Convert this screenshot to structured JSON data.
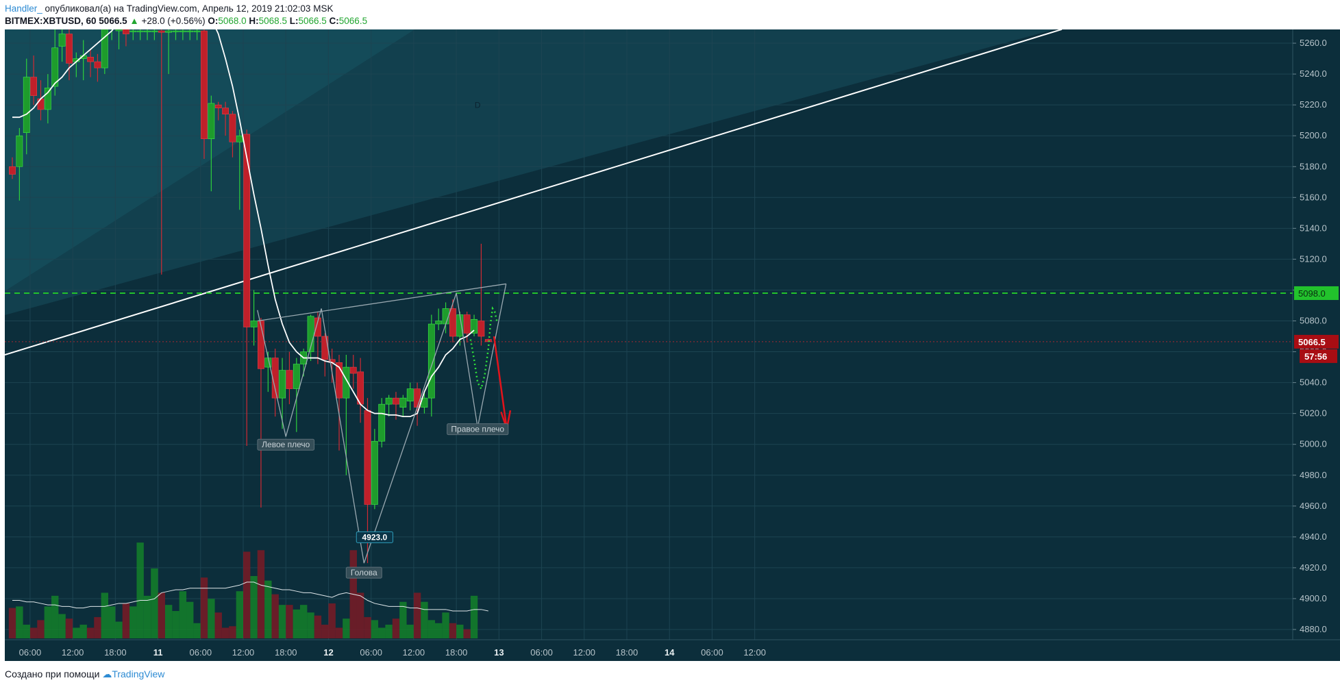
{
  "header": {
    "author": "Handler_",
    "published_text": " опубликовал(а) на TradingView.com, Апрель 12, 2019 21:02:03 MSK",
    "symbol": "BITMEX:XBTUSD, 60",
    "last_price": "5066.5",
    "change": "+28.0 (+0.56%)",
    "open_label": "O:",
    "open_value": "5068.0",
    "high_label": "H:",
    "high_value": "5068.5",
    "low_label": "L:",
    "low_value": "5066.5",
    "close_label": "C:",
    "close_value": "5066.5"
  },
  "footer": {
    "created_with": "Создано при помощи",
    "brand": "TradingView"
  },
  "colors": {
    "background": "#0c2e3b",
    "up_candle": "#1e9c2c",
    "down_candle": "#c0202a",
    "accent_green": "#22c22c",
    "price_red": "#a80d13"
  },
  "chart_data": {
    "type": "candlestick",
    "symbol": "BITMEX:XBTUSD",
    "interval": "60",
    "y_axis": {
      "ticks": [
        4880,
        4900,
        4920,
        4940,
        4960,
        4980,
        5000,
        5020,
        5040,
        5060,
        5080,
        5100,
        5120,
        5140,
        5160,
        5180,
        5200,
        5220,
        5240,
        5260
      ],
      "range": [
        4866,
        5266
      ]
    },
    "x_axis": {
      "ticks": [
        {
          "label": "06:00",
          "i": 2.5
        },
        {
          "label": "12:00",
          "i": 8.5
        },
        {
          "label": "18:00",
          "i": 14.5
        },
        {
          "label": "11",
          "i": 20.5
        },
        {
          "label": "06:00",
          "i": 26.5
        },
        {
          "label": "12:00",
          "i": 32.5
        },
        {
          "label": "18:00",
          "i": 38.5
        },
        {
          "label": "12",
          "i": 44.5
        },
        {
          "label": "06:00",
          "i": 50.5
        },
        {
          "label": "12:00",
          "i": 56.5
        },
        {
          "label": "18:00",
          "i": 62.5
        },
        {
          "label": "13",
          "i": 68.5
        },
        {
          "label": "06:00",
          "i": 74.5
        },
        {
          "label": "12:00",
          "i": 80.5
        },
        {
          "label": "18:00",
          "i": 86.5
        },
        {
          "label": "14",
          "i": 92.5
        },
        {
          "label": "06:00",
          "i": 98.5
        },
        {
          "label": "12:00",
          "i": 104.5
        }
      ]
    },
    "candles": [
      {
        "o": 5180,
        "h": 5186,
        "c": 5175,
        "l": 5172
      },
      {
        "o": 5180,
        "h": 5205,
        "c": 5200,
        "l": 5158
      },
      {
        "o": 5202,
        "h": 5250,
        "c": 5238,
        "l": 5188
      },
      {
        "o": 5238,
        "h": 5252,
        "c": 5226,
        "l": 5220
      },
      {
        "o": 5224,
        "h": 5236,
        "c": 5217,
        "l": 5210
      },
      {
        "o": 5217,
        "h": 5240,
        "c": 5231,
        "l": 5208
      },
      {
        "o": 5232,
        "h": 5270,
        "c": 5257,
        "l": 5226
      },
      {
        "o": 5258,
        "h": 5272,
        "c": 5266,
        "l": 5248
      },
      {
        "o": 5266,
        "h": 5270,
        "c": 5247,
        "l": 5236
      },
      {
        "o": 5248,
        "h": 5254,
        "c": 5250,
        "l": 5238
      },
      {
        "o": 5250,
        "h": 5262,
        "c": 5252,
        "l": 5236
      },
      {
        "o": 5251,
        "h": 5256,
        "c": 5248,
        "l": 5238
      },
      {
        "o": 5248,
        "h": 5253,
        "c": 5244,
        "l": 5235
      },
      {
        "o": 5244,
        "h": 5272,
        "c": 5270,
        "l": 5240
      },
      {
        "o": 5270,
        "h": 5273,
        "c": 5270,
        "l": 5262
      },
      {
        "o": 5268,
        "h": 5274,
        "c": 5270,
        "l": 5256
      },
      {
        "o": 5270,
        "h": 5272,
        "c": 5266,
        "l": 5258
      },
      {
        "o": 5268,
        "h": 5270,
        "c": 5268,
        "l": 5262
      },
      {
        "o": 5268,
        "h": 5270,
        "c": 5268,
        "l": 5262
      },
      {
        "o": 5268,
        "h": 5270,
        "c": 5268,
        "l": 5262
      },
      {
        "o": 5268,
        "h": 5270,
        "c": 5268,
        "l": 5262
      },
      {
        "o": 5268,
        "h": 5270,
        "c": 5267,
        "l": 5110
      },
      {
        "o": 5267,
        "h": 5269,
        "c": 5268,
        "l": 5240
      },
      {
        "o": 5268,
        "h": 5270,
        "c": 5268,
        "l": 5262
      },
      {
        "o": 5268,
        "h": 5270,
        "c": 5268,
        "l": 5262
      },
      {
        "o": 5268,
        "h": 5270,
        "c": 5268,
        "l": 5262
      },
      {
        "o": 5268,
        "h": 5270,
        "c": 5268,
        "l": 5262
      },
      {
        "o": 5268,
        "h": 5272,
        "c": 5198,
        "l": 5185
      },
      {
        "o": 5198,
        "h": 5226,
        "c": 5221,
        "l": 5164
      },
      {
        "o": 5220,
        "h": 5222,
        "c": 5218,
        "l": 5210
      },
      {
        "o": 5218,
        "h": 5222,
        "c": 5214,
        "l": 5200
      },
      {
        "o": 5214,
        "h": 5216,
        "c": 5196,
        "l": 5186
      },
      {
        "o": 5196,
        "h": 5204,
        "c": 5200,
        "l": 5152
      },
      {
        "o": 5201,
        "h": 5204,
        "c": 5076,
        "l": 4999
      },
      {
        "o": 5076,
        "h": 5100,
        "c": 5080,
        "l": 5064
      },
      {
        "o": 5080,
        "h": 5082,
        "c": 5049,
        "l": 4959
      },
      {
        "o": 5050,
        "h": 5060,
        "c": 5056,
        "l": 5034
      },
      {
        "o": 5056,
        "h": 5062,
        "c": 5030,
        "l": 5018
      },
      {
        "o": 5030,
        "h": 5056,
        "c": 5048,
        "l": 5010
      },
      {
        "o": 5048,
        "h": 5060,
        "c": 5036,
        "l": 5026
      },
      {
        "o": 5036,
        "h": 5056,
        "c": 5052,
        "l": 5008
      },
      {
        "o": 5052,
        "h": 5062,
        "c": 5060,
        "l": 5044
      },
      {
        "o": 5060,
        "h": 5084,
        "c": 5083,
        "l": 5054
      },
      {
        "o": 5082,
        "h": 5086,
        "c": 5070,
        "l": 5052
      },
      {
        "o": 5070,
        "h": 5072,
        "c": 5055,
        "l": 5044
      },
      {
        "o": 5055,
        "h": 5062,
        "c": 5053,
        "l": 5040
      },
      {
        "o": 5053,
        "h": 5058,
        "c": 5030,
        "l": 4996
      },
      {
        "o": 5030,
        "h": 5058,
        "c": 5050,
        "l": 4980
      },
      {
        "o": 5050,
        "h": 5058,
        "c": 5046,
        "l": 5036
      },
      {
        "o": 5047,
        "h": 5056,
        "c": 5026,
        "l": 5014
      },
      {
        "o": 5022,
        "h": 5030,
        "c": 4961,
        "l": 4923
      },
      {
        "o": 4961,
        "h": 5010,
        "c": 5002,
        "l": 4958
      },
      {
        "o": 5002,
        "h": 5030,
        "c": 5026,
        "l": 4998
      },
      {
        "o": 5026,
        "h": 5032,
        "c": 5030,
        "l": 5018
      },
      {
        "o": 5030,
        "h": 5034,
        "c": 5026,
        "l": 5016
      },
      {
        "o": 5024,
        "h": 5032,
        "c": 5030,
        "l": 5018
      },
      {
        "o": 5028,
        "h": 5040,
        "c": 5036,
        "l": 5022
      },
      {
        "o": 5036,
        "h": 5040,
        "c": 5024,
        "l": 5012
      },
      {
        "o": 5024,
        "h": 5034,
        "c": 5030,
        "l": 5020
      },
      {
        "o": 5030,
        "h": 5084,
        "c": 5078,
        "l": 5018
      },
      {
        "o": 5078,
        "h": 5088,
        "c": 5080,
        "l": 5074
      },
      {
        "o": 5078,
        "h": 5092,
        "c": 5088,
        "l": 5072
      },
      {
        "o": 5088,
        "h": 5094,
        "c": 5070,
        "l": 5066
      },
      {
        "o": 5070,
        "h": 5086,
        "c": 5084,
        "l": 5064
      },
      {
        "o": 5084,
        "h": 5086,
        "c": 5072,
        "l": 5066
      },
      {
        "o": 5072,
        "h": 5084,
        "c": 5081,
        "l": 5070
      },
      {
        "o": 5080,
        "h": 5130,
        "c": 5070,
        "l": 5064
      },
      {
        "o": 5068,
        "h": 5068.5,
        "c": 5066.5,
        "l": 5066.5
      }
    ],
    "volume": [
      0.2,
      0.21,
      0.09,
      0.07,
      0.12,
      0.21,
      0.28,
      0.16,
      0.13,
      0.07,
      0.09,
      0.07,
      0.14,
      0.3,
      0.21,
      0.11,
      0.23,
      0.21,
      0.63,
      0.28,
      0.46,
      0.3,
      0.22,
      0.18,
      0.31,
      0.24,
      0.1,
      0.4,
      0.26,
      0.17,
      0.07,
      0.08,
      0.31,
      0.57,
      0.41,
      0.58,
      0.38,
      0.29,
      0.22,
      0.22,
      0.19,
      0.22,
      0.17,
      0.15,
      0.09,
      0.23,
      0.07,
      0.13,
      0.58,
      0.3,
      0.14,
      0.12,
      0.07,
      0.09,
      0.13,
      0.24,
      0.09,
      0.3,
      0.24,
      0.12,
      0.1,
      0.17,
      0.1,
      0.09,
      0.06,
      0.28
    ],
    "volume_ma": [
      0.25,
      0.25,
      0.24,
      0.24,
      0.23,
      0.22,
      0.22,
      0.21,
      0.21,
      0.2,
      0.2,
      0.21,
      0.21,
      0.21,
      0.22,
      0.23,
      0.23,
      0.24,
      0.25,
      0.25,
      0.26,
      0.3,
      0.31,
      0.32,
      0.32,
      0.33,
      0.33,
      0.33,
      0.33,
      0.33,
      0.33,
      0.34,
      0.35,
      0.37,
      0.37,
      0.35,
      0.34,
      0.33,
      0.32,
      0.32,
      0.31,
      0.3,
      0.3,
      0.29,
      0.28,
      0.27,
      0.29,
      0.3,
      0.29,
      0.28,
      0.25,
      0.23,
      0.22,
      0.21,
      0.21,
      0.21,
      0.2,
      0.2,
      0.19,
      0.19,
      0.19,
      0.19,
      0.18,
      0.18,
      0.18,
      0.19,
      0.19,
      0.18
    ],
    "ma_line": [
      5212,
      5212,
      5214,
      5218,
      5224,
      5228,
      5234,
      5238,
      5244,
      5248,
      5252,
      5256,
      5260,
      5264,
      5268,
      5274,
      5280,
      5286,
      5292,
      5296,
      5298,
      5298,
      5296,
      5294,
      5292,
      5290,
      5288,
      5284,
      5276,
      5266,
      5250,
      5232,
      5210,
      5186,
      5162,
      5140,
      5116,
      5094,
      5078,
      5066,
      5060,
      5056,
      5056,
      5056,
      5054,
      5053,
      5050,
      5042,
      5034,
      5026,
      5022,
      5020,
      5020,
      5019,
      5019,
      5018,
      5018,
      5020,
      5034,
      5044,
      5050,
      5058,
      5062,
      5068,
      5070,
      5074
    ],
    "levels": {
      "resistance": 5098.0,
      "last_price": 5066.5,
      "countdown": "57:56"
    },
    "annotations": [
      {
        "text": "Левое плечо",
        "i": 38.5,
        "price": 4998
      },
      {
        "text": "Голова",
        "i": 49.5,
        "price": 4915
      },
      {
        "text": "Правое плечо",
        "i": 65.5,
        "price": 5008
      },
      {
        "text": "4923.0",
        "i": 51,
        "price": 4938
      },
      {
        "text": "D",
        "i": 65.5,
        "price": 5218
      }
    ]
  }
}
